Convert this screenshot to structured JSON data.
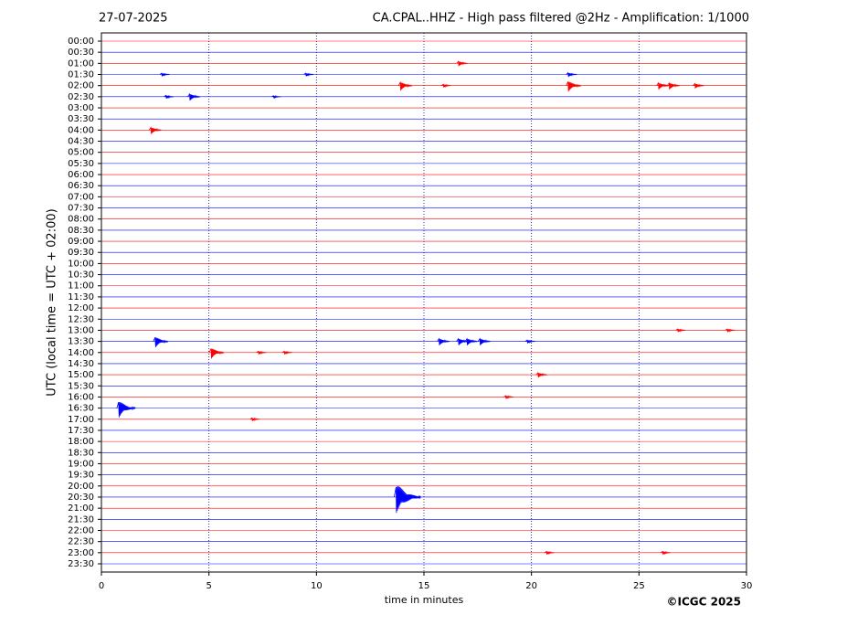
{
  "chart_data": {
    "type": "helicorder",
    "title": "CA.CPAL..HHZ - High pass filtered @2Hz - Amplification: 1/1000",
    "date": "27-07-2025",
    "ylabel": "UTC (local time = UTC + 02:00)",
    "xlabel": "time in minutes",
    "credit": "©ICGC 2025",
    "categories": [
      "00:00",
      "00:30",
      "01:00",
      "01:30",
      "02:00",
      "02:30",
      "03:00",
      "03:30",
      "04:00",
      "04:30",
      "05:00",
      "05:30",
      "06:00",
      "06:30",
      "07:00",
      "07:30",
      "08:00",
      "08:30",
      "09:00",
      "09:30",
      "10:00",
      "10:30",
      "11:00",
      "11:30",
      "12:00",
      "12:30",
      "13:00",
      "13:30",
      "14:00",
      "14:30",
      "15:00",
      "15:30",
      "16:00",
      "16:30",
      "17:00",
      "17:30",
      "18:00",
      "18:30",
      "19:00",
      "19:30",
      "20:00",
      "20:30",
      "21:00",
      "21:30",
      "22:00",
      "22:30",
      "23:00",
      "23:30"
    ],
    "colors": [
      "#ff0000",
      "#0000ff"
    ],
    "xlim": [
      0,
      30
    ],
    "xticks": [
      0,
      5,
      10,
      15,
      20,
      25,
      30
    ],
    "grid": true,
    "events": [
      {
        "row": 2,
        "minute": 16.6,
        "amplitude": 0.3
      },
      {
        "row": 3,
        "minute": 2.8,
        "amplitude": 0.2
      },
      {
        "row": 3,
        "minute": 9.5,
        "amplitude": 0.2
      },
      {
        "row": 3,
        "minute": 21.7,
        "amplitude": 0.25
      },
      {
        "row": 4,
        "minute": 13.9,
        "amplitude": 0.5
      },
      {
        "row": 4,
        "minute": 15.9,
        "amplitude": 0.2
      },
      {
        "row": 4,
        "minute": 21.7,
        "amplitude": 0.6
      },
      {
        "row": 4,
        "minute": 25.9,
        "amplitude": 0.4
      },
      {
        "row": 4,
        "minute": 26.4,
        "amplitude": 0.4
      },
      {
        "row": 4,
        "minute": 27.6,
        "amplitude": 0.3
      },
      {
        "row": 5,
        "minute": 3.0,
        "amplitude": 0.2
      },
      {
        "row": 5,
        "minute": 4.1,
        "amplitude": 0.4
      },
      {
        "row": 5,
        "minute": 8.0,
        "amplitude": 0.15
      },
      {
        "row": 8,
        "minute": 2.3,
        "amplitude": 0.4
      },
      {
        "row": 26,
        "minute": 26.8,
        "amplitude": 0.2
      },
      {
        "row": 26,
        "minute": 29.1,
        "amplitude": 0.2
      },
      {
        "row": 27,
        "minute": 2.5,
        "amplitude": 0.6
      },
      {
        "row": 27,
        "minute": 15.7,
        "amplitude": 0.4
      },
      {
        "row": 27,
        "minute": 16.6,
        "amplitude": 0.4
      },
      {
        "row": 27,
        "minute": 17.0,
        "amplitude": 0.4
      },
      {
        "row": 27,
        "minute": 17.6,
        "amplitude": 0.4
      },
      {
        "row": 27,
        "minute": 19.8,
        "amplitude": 0.2
      },
      {
        "row": 28,
        "minute": 5.1,
        "amplitude": 0.6
      },
      {
        "row": 28,
        "minute": 7.3,
        "amplitude": 0.2
      },
      {
        "row": 28,
        "minute": 8.5,
        "amplitude": 0.2
      },
      {
        "row": 30,
        "minute": 20.3,
        "amplitude": 0.3
      },
      {
        "row": 32,
        "minute": 18.8,
        "amplitude": 0.2
      },
      {
        "row": 33,
        "minute": 0.8,
        "amplitude": 0.9
      },
      {
        "row": 34,
        "minute": 7.0,
        "amplitude": 0.2
      },
      {
        "row": 41,
        "minute": 13.7,
        "amplitude": 1.5
      },
      {
        "row": 46,
        "minute": 20.7,
        "amplitude": 0.2
      },
      {
        "row": 46,
        "minute": 26.1,
        "amplitude": 0.2
      }
    ]
  }
}
